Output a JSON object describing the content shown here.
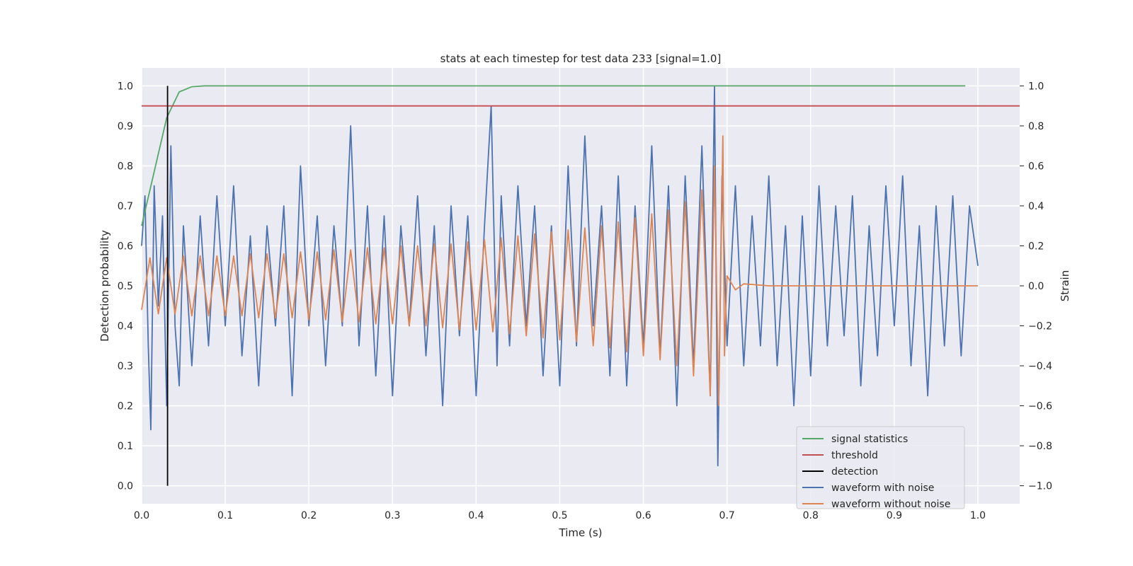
{
  "chart_data": {
    "type": "line",
    "title": "stats at each timestep for test data 233 [signal=1.0]",
    "xlabel": "Time (s)",
    "ylabel": "Detection probability",
    "ylabel_right": "Strain",
    "xlim": [
      0.0,
      1.05
    ],
    "ylim": [
      -0.045,
      1.045
    ],
    "ylim_right": [
      -1.09,
      1.09
    ],
    "x_ticks": [
      0.0,
      0.1,
      0.2,
      0.3,
      0.4,
      0.5,
      0.6,
      0.7,
      0.8,
      0.9,
      1.0
    ],
    "x_tick_labels": [
      "0.0",
      "0.1",
      "0.2",
      "0.3",
      "0.4",
      "0.5",
      "0.6",
      "0.7",
      "0.8",
      "0.9",
      "1.0"
    ],
    "y_ticks": [
      0.0,
      0.1,
      0.2,
      0.3,
      0.4,
      0.5,
      0.6,
      0.7,
      0.8,
      0.9,
      1.0
    ],
    "y_tick_labels": [
      "0.0",
      "0.1",
      "0.2",
      "0.3",
      "0.4",
      "0.5",
      "0.6",
      "0.7",
      "0.8",
      "0.9",
      "1.0"
    ],
    "y_right_ticks": [
      -1.0,
      -0.8,
      -0.6,
      -0.4,
      -0.2,
      0.0,
      0.2,
      0.4,
      0.6,
      0.8,
      1.0
    ],
    "y_right_tick_labels": [
      "−1.0",
      "−0.8",
      "−0.6",
      "−0.4",
      "−0.2",
      "0.0",
      "0.2",
      "0.4",
      "0.6",
      "0.8",
      "1.0"
    ],
    "grid": true,
    "legend_position": "bottom-right",
    "series": [
      {
        "name": "signal statistics",
        "color": "#55a868",
        "axis": "left",
        "x": [
          0.0,
          0.03,
          0.045,
          0.06,
          0.075,
          0.1,
          0.2,
          0.4,
          0.6,
          0.8,
          0.985
        ],
        "values": [
          0.65,
          0.92,
          0.985,
          0.998,
          1.0,
          1.0,
          1.0,
          1.0,
          1.0,
          1.0,
          1.0
        ]
      },
      {
        "name": "threshold",
        "color": "#c44e52",
        "axis": "left",
        "x": [
          0.0,
          1.05
        ],
        "values": [
          0.95,
          0.95
        ]
      },
      {
        "name": "detection",
        "color": "#000000",
        "axis": "left",
        "x": [
          0.031,
          0.031
        ],
        "values": [
          0.0,
          1.0
        ]
      },
      {
        "name": "waveform with noise",
        "color": "#4c72b0",
        "axis": "right",
        "x": [
          0.0,
          0.004,
          0.008,
          0.011,
          0.015,
          0.02,
          0.025,
          0.03,
          0.035,
          0.04,
          0.045,
          0.05,
          0.06,
          0.07,
          0.08,
          0.09,
          0.1,
          0.11,
          0.12,
          0.13,
          0.14,
          0.15,
          0.16,
          0.17,
          0.18,
          0.19,
          0.2,
          0.21,
          0.22,
          0.23,
          0.24,
          0.25,
          0.26,
          0.27,
          0.28,
          0.29,
          0.3,
          0.31,
          0.32,
          0.33,
          0.34,
          0.35,
          0.36,
          0.37,
          0.38,
          0.39,
          0.4,
          0.41,
          0.418,
          0.425,
          0.43,
          0.44,
          0.45,
          0.46,
          0.47,
          0.48,
          0.49,
          0.5,
          0.51,
          0.52,
          0.53,
          0.54,
          0.55,
          0.56,
          0.57,
          0.58,
          0.59,
          0.6,
          0.61,
          0.62,
          0.63,
          0.64,
          0.65,
          0.66,
          0.67,
          0.68,
          0.685,
          0.689,
          0.694,
          0.7,
          0.71,
          0.72,
          0.73,
          0.74,
          0.75,
          0.76,
          0.77,
          0.78,
          0.79,
          0.8,
          0.81,
          0.82,
          0.83,
          0.84,
          0.85,
          0.86,
          0.87,
          0.88,
          0.89,
          0.9,
          0.91,
          0.92,
          0.93,
          0.94,
          0.95,
          0.96,
          0.97,
          0.98,
          0.99,
          1.0
        ],
        "values": [
          0.2,
          0.45,
          -0.3,
          -0.72,
          0.5,
          -0.1,
          0.35,
          -0.6,
          0.7,
          -0.2,
          -0.5,
          0.3,
          -0.4,
          0.35,
          -0.3,
          0.45,
          -0.2,
          0.5,
          -0.35,
          0.25,
          -0.5,
          0.3,
          -0.2,
          0.4,
          -0.55,
          0.6,
          -0.2,
          0.35,
          -0.4,
          0.3,
          -0.2,
          0.8,
          -0.3,
          0.4,
          -0.45,
          0.35,
          -0.55,
          0.3,
          -0.2,
          0.45,
          -0.35,
          0.3,
          -0.6,
          0.4,
          -0.25,
          0.35,
          -0.55,
          0.3,
          0.9,
          -0.4,
          0.45,
          -0.3,
          0.5,
          -0.2,
          0.4,
          -0.45,
          0.3,
          -0.5,
          0.6,
          -0.3,
          0.75,
          -0.2,
          0.4,
          -0.45,
          0.55,
          -0.5,
          0.4,
          -0.3,
          0.7,
          -0.35,
          0.5,
          -0.6,
          0.55,
          -0.4,
          0.7,
          -0.55,
          1.0,
          -0.9,
          0.55,
          -0.3,
          0.5,
          -0.4,
          0.35,
          -0.3,
          0.55,
          -0.4,
          0.3,
          -0.6,
          0.35,
          -0.45,
          0.5,
          -0.3,
          0.4,
          -0.25,
          0.45,
          -0.5,
          0.3,
          -0.35,
          0.5,
          -0.2,
          0.55,
          -0.4,
          0.3,
          -0.55,
          0.4,
          -0.3,
          0.45,
          -0.35,
          0.4,
          0.1
        ]
      },
      {
        "name": "waveform without noise",
        "color": "#dd8452",
        "axis": "right",
        "x": [
          0.0,
          0.01,
          0.02,
          0.03,
          0.04,
          0.05,
          0.06,
          0.07,
          0.08,
          0.09,
          0.1,
          0.11,
          0.12,
          0.13,
          0.14,
          0.15,
          0.16,
          0.17,
          0.18,
          0.19,
          0.2,
          0.21,
          0.22,
          0.23,
          0.24,
          0.25,
          0.26,
          0.27,
          0.28,
          0.29,
          0.3,
          0.31,
          0.32,
          0.33,
          0.34,
          0.35,
          0.36,
          0.37,
          0.38,
          0.39,
          0.4,
          0.41,
          0.42,
          0.43,
          0.44,
          0.45,
          0.46,
          0.47,
          0.48,
          0.49,
          0.5,
          0.51,
          0.52,
          0.53,
          0.54,
          0.55,
          0.56,
          0.57,
          0.58,
          0.59,
          0.6,
          0.61,
          0.62,
          0.63,
          0.64,
          0.65,
          0.66,
          0.67,
          0.68,
          0.685,
          0.69,
          0.695,
          0.697,
          0.7,
          0.71,
          0.72,
          0.75,
          0.8,
          0.9,
          1.0
        ],
        "values": [
          -0.12,
          0.14,
          -0.14,
          0.14,
          -0.14,
          0.15,
          -0.15,
          0.15,
          -0.15,
          0.15,
          -0.15,
          0.15,
          -0.15,
          0.16,
          -0.16,
          0.16,
          -0.16,
          0.16,
          -0.16,
          0.17,
          -0.17,
          0.17,
          -0.17,
          0.18,
          -0.18,
          0.18,
          -0.18,
          0.19,
          -0.19,
          0.19,
          -0.19,
          0.2,
          -0.2,
          0.2,
          -0.2,
          0.21,
          -0.21,
          0.21,
          -0.22,
          0.22,
          -0.22,
          0.23,
          -0.23,
          0.24,
          -0.24,
          0.25,
          -0.25,
          0.26,
          -0.26,
          0.27,
          -0.27,
          0.28,
          -0.28,
          0.29,
          -0.3,
          0.3,
          -0.31,
          0.32,
          -0.33,
          0.34,
          -0.35,
          0.36,
          -0.37,
          0.38,
          -0.4,
          0.42,
          -0.45,
          0.48,
          -0.55,
          0.6,
          -0.6,
          0.75,
          -0.35,
          0.05,
          -0.02,
          0.01,
          0.0,
          0.0,
          0.0,
          0.0
        ]
      }
    ]
  }
}
